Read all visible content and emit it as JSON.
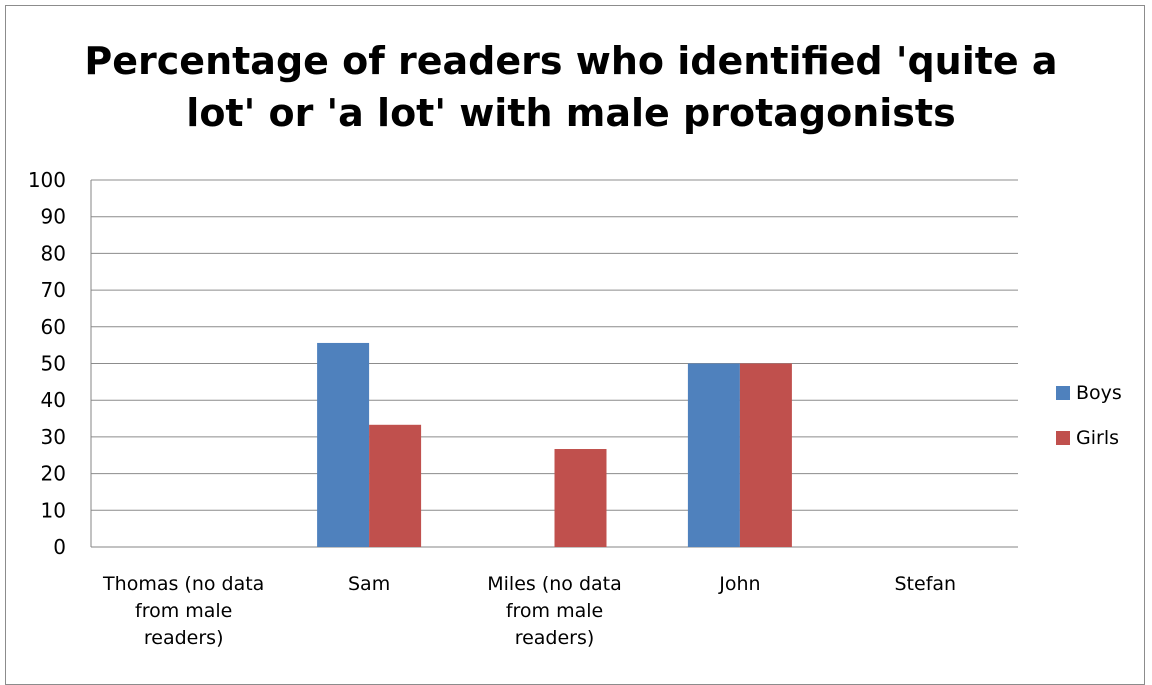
{
  "chart_data": {
    "type": "bar",
    "title_lines": [
      "Percentage of readers who identified 'quite a",
      "lot' or 'a lot' with male protagonists"
    ],
    "categories": [
      [
        "Thomas (no data",
        "from male",
        "readers)"
      ],
      [
        "Sam"
      ],
      [
        "Miles (no data",
        "from male",
        "readers)"
      ],
      [
        "John"
      ],
      [
        "Stefan"
      ]
    ],
    "series": [
      {
        "name": "Boys",
        "color": "#4f81bd",
        "values": [
          null,
          55.6,
          null,
          50,
          0
        ]
      },
      {
        "name": "Girls",
        "color": "#c0504d",
        "values": [
          0,
          33.3,
          26.7,
          50,
          0
        ]
      }
    ],
    "ylim": [
      0,
      100
    ],
    "yticks": [
      0,
      10,
      20,
      30,
      40,
      50,
      60,
      70,
      80,
      90,
      100
    ],
    "grid": true,
    "legend_position": "right"
  }
}
